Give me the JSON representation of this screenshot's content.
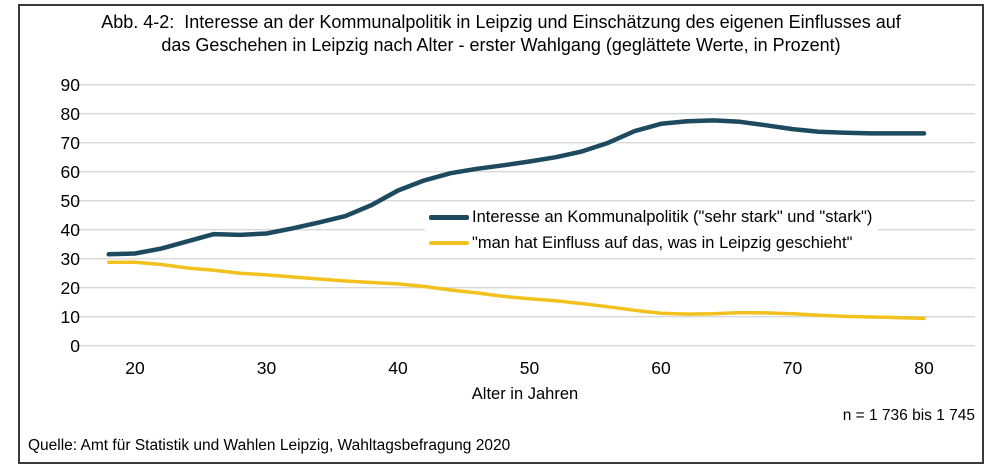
{
  "title": {
    "prefix": "Abb. 4-2:",
    "line1": "Interesse an der Kommunalpolitik in Leipzig und Einschätzung des eigenen Einflusses auf",
    "line2": "das Geschehen in Leipzig nach Alter - erster Wahlgang (geglättete Werte, in Prozent)"
  },
  "chart_data": {
    "type": "line",
    "xlabel": "Alter in Jahren",
    "x": [
      18,
      20,
      22,
      24,
      26,
      28,
      30,
      32,
      34,
      36,
      38,
      40,
      42,
      44,
      46,
      48,
      50,
      52,
      54,
      56,
      58,
      60,
      62,
      64,
      66,
      68,
      70,
      72,
      74,
      76,
      78,
      80
    ],
    "series": [
      {
        "name": "Interesse an Kommunalpolitik (\"sehr stark\" und \"stark\")",
        "color": "#1d4a5f",
        "stroke_width": 4.5,
        "values": [
          31.5,
          31.8,
          33.5,
          36.0,
          38.5,
          38.2,
          38.7,
          40.5,
          42.5,
          44.7,
          48.5,
          53.5,
          57.0,
          59.5,
          61.0,
          62.2,
          63.5,
          65.0,
          67.0,
          70.0,
          74.0,
          76.5,
          77.4,
          77.7,
          77.2,
          76.0,
          74.7,
          73.8,
          73.4,
          73.2,
          73.2,
          73.2
        ]
      },
      {
        "name": "\"man hat Einfluss auf das, was in Leipzig geschieht\"",
        "color": "#f2c11e",
        "stroke_width": 3.5,
        "values": [
          28.8,
          28.8,
          28.0,
          26.8,
          26.0,
          25.0,
          24.4,
          23.7,
          23.0,
          22.3,
          21.8,
          21.3,
          20.4,
          19.2,
          18.2,
          17.0,
          16.2,
          15.5,
          14.5,
          13.4,
          12.2,
          11.2,
          10.9,
          11.0,
          11.4,
          11.3,
          11.0,
          10.5,
          10.1,
          9.9,
          9.7,
          9.4
        ]
      }
    ],
    "x_ticks": [
      20,
      30,
      40,
      50,
      60,
      70,
      80
    ],
    "y_ticks": [
      0,
      10,
      20,
      30,
      40,
      50,
      60,
      70,
      80,
      90
    ],
    "xlim": [
      18,
      80
    ],
    "ylim": [
      0,
      90
    ],
    "grid": "horizontal",
    "gridline_color": "#d8d8d8",
    "legend_position": "inside-right"
  },
  "note": "n = 1 736 bis 1 745",
  "source": "Quelle: Amt für Statistik und Wahlen Leipzig, Wahltagsbefragung 2020"
}
